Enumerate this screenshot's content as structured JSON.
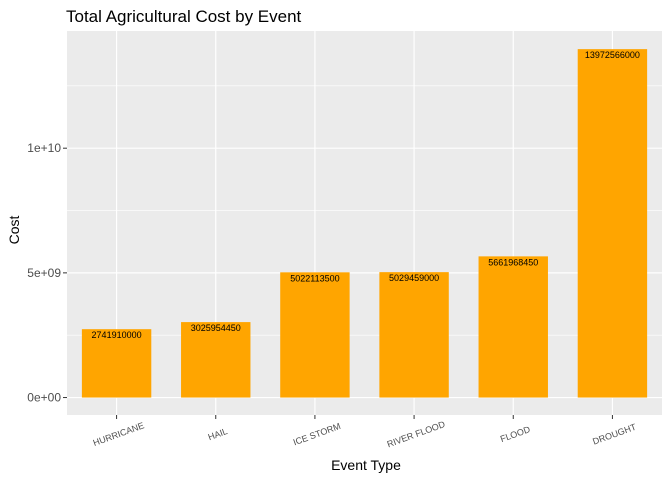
{
  "chart_data": {
    "type": "bar",
    "title": "Total Agricultural Cost by Event",
    "xlabel": "Event Type",
    "ylabel": "Cost",
    "categories": [
      "HURRICANE",
      "HAIL",
      "ICE STORM",
      "RIVER FLOOD",
      "FLOOD",
      "DROUGHT"
    ],
    "values": [
      2741910000,
      3025954450,
      5022113500,
      5029459000,
      5661968450,
      13972566000
    ],
    "value_labels": [
      "2741910000",
      "3025954450",
      "5022113500",
      "5029459000",
      "5661968450",
      "13972566000"
    ],
    "yticks": [
      0,
      5000000000,
      10000000000
    ],
    "ytick_labels": [
      "0e+00",
      "5e+09",
      "1e+10"
    ],
    "ylim": [
      -700000000,
      14700000000
    ],
    "grid": true,
    "bar_color": "#ffa500",
    "panel_color": "#ebebeb",
    "grid_color": "#ffffff"
  }
}
